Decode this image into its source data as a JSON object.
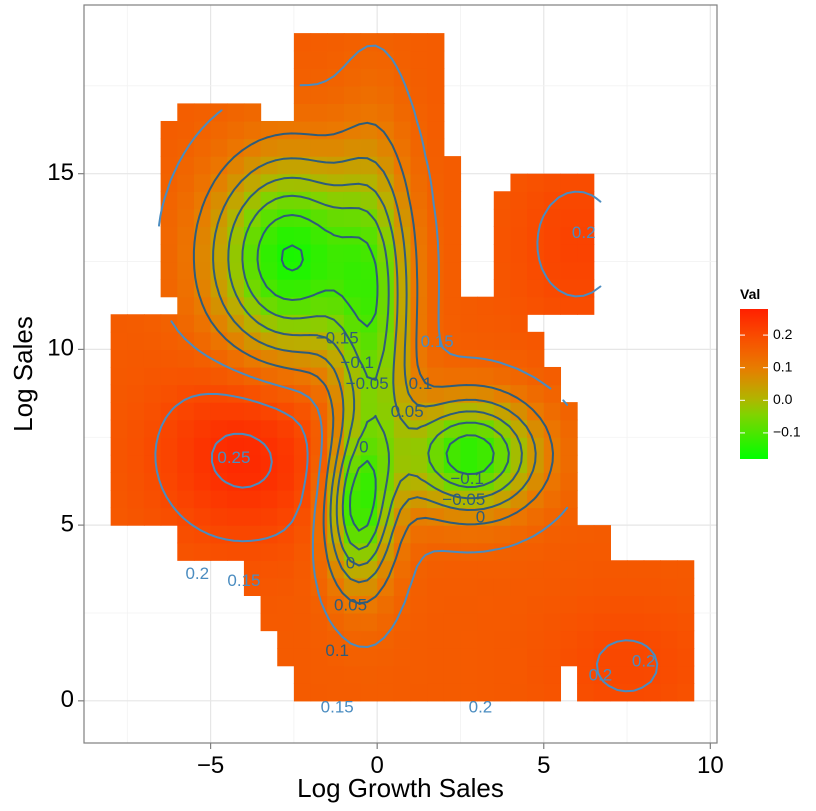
{
  "chart_data": {
    "type": "heatmap",
    "xlabel": "Log Growth Sales",
    "ylabel": "Log Sales",
    "xlim": [
      -8.8,
      10.2
    ],
    "ylim": [
      -1.2,
      19.8
    ],
    "x_ticks": [
      -5,
      0,
      5,
      10
    ],
    "y_ticks": [
      0,
      5,
      10,
      15
    ],
    "x_tick_labels": [
      "−5",
      "0",
      "5",
      "10"
    ],
    "y_tick_labels": [
      "0",
      "5",
      "10",
      "15"
    ],
    "grid": true,
    "color_scale": {
      "low_color": "#00ff00",
      "high_color": "#ff2000",
      "range": [
        -0.18,
        0.28
      ]
    },
    "legend": {
      "title": "Val",
      "placement": "right",
      "ticks": [
        0.2,
        0.1,
        0.0,
        -0.1
      ],
      "tick_labels": [
        "0.2",
        "0.1",
        "0.0",
        "−0.1"
      ]
    },
    "contour_levels": [
      -0.15,
      -0.1,
      -0.05,
      0,
      0.05,
      0.1,
      0.15,
      0.2,
      0.25
    ],
    "contour_labels": [
      {
        "text": "0.2",
        "x": 6.2,
        "y": 13.3,
        "level": 0.2
      },
      {
        "text": "−0.15",
        "x": -1.2,
        "y": 10.3,
        "level": -0.15
      },
      {
        "text": "0.15",
        "x": 1.8,
        "y": 10.2,
        "level": 0.15
      },
      {
        "text": "−0.1",
        "x": -0.6,
        "y": 9.6,
        "level": -0.1
      },
      {
        "text": "−0.05",
        "x": -0.3,
        "y": 9.0,
        "level": -0.05
      },
      {
        "text": "0.1",
        "x": 1.3,
        "y": 9.0,
        "level": 0.1
      },
      {
        "text": "0.05",
        "x": 0.9,
        "y": 8.2,
        "level": 0.05
      },
      {
        "text": "0",
        "x": -0.4,
        "y": 7.2,
        "level": 0
      },
      {
        "text": "−0.1",
        "x": 2.7,
        "y": 6.3,
        "level": -0.1
      },
      {
        "text": "−0.05",
        "x": 2.6,
        "y": 5.7,
        "level": -0.05
      },
      {
        "text": "0",
        "x": 3.1,
        "y": 5.2,
        "level": 0
      },
      {
        "text": "0.25",
        "x": -4.3,
        "y": 6.9,
        "level": 0.25
      },
      {
        "text": "0",
        "x": -0.8,
        "y": 3.9,
        "level": 0
      },
      {
        "text": "0.2",
        "x": -5.4,
        "y": 3.6,
        "level": 0.2
      },
      {
        "text": "0.15",
        "x": -4.0,
        "y": 3.4,
        "level": 0.15
      },
      {
        "text": "0.05",
        "x": -0.8,
        "y": 2.7,
        "level": 0.05
      },
      {
        "text": "0.1",
        "x": -1.2,
        "y": 1.4,
        "level": 0.1
      },
      {
        "text": "0.15",
        "x": -1.2,
        "y": -0.2,
        "level": 0.15
      },
      {
        "text": "0.2",
        "x": 3.1,
        "y": -0.2,
        "level": 0.2
      },
      {
        "text": "0.2",
        "x": 6.7,
        "y": 0.7,
        "level": 0.2
      },
      {
        "text": "0.2",
        "x": 8.0,
        "y": 1.1,
        "level": 0.2
      }
    ]
  }
}
